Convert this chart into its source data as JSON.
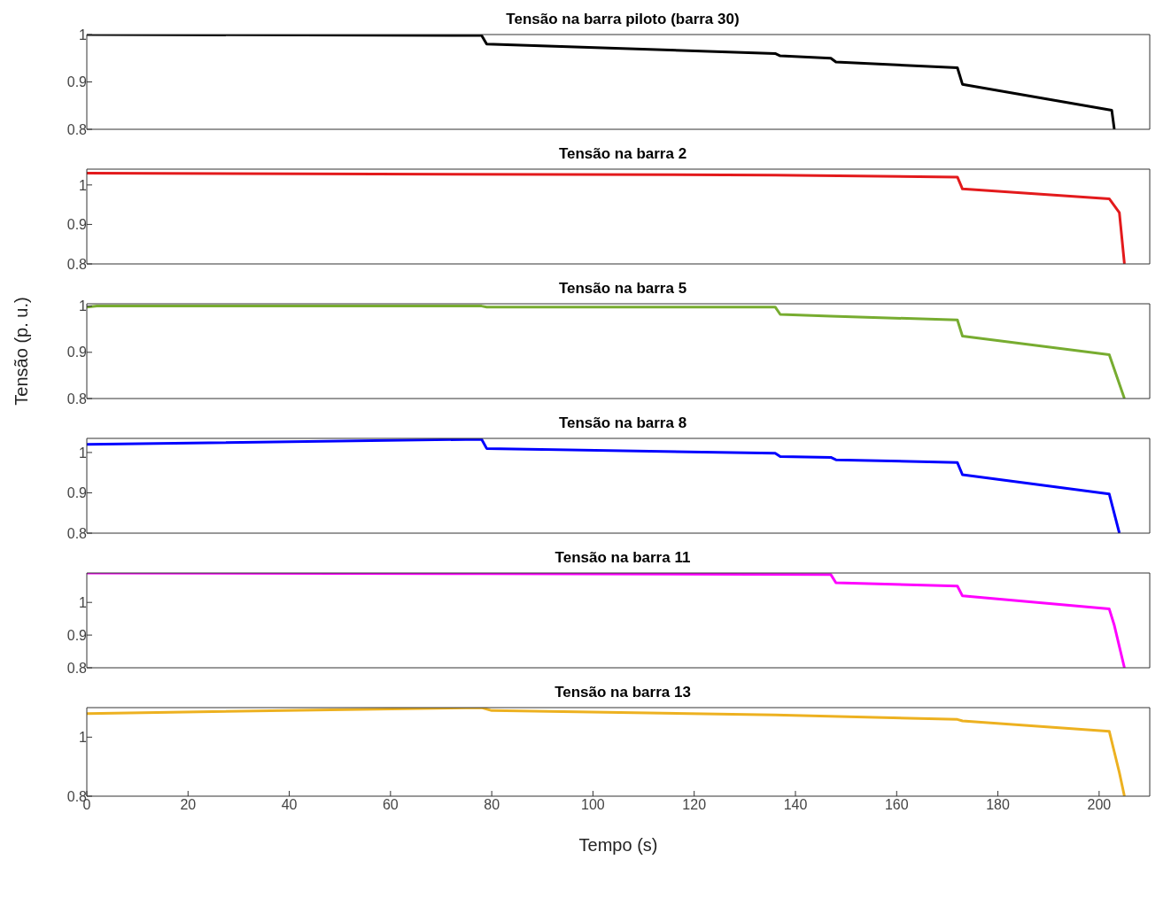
{
  "chart_data": [
    {
      "type": "line",
      "title": "Tensão na barra piloto (barra 30)",
      "xlim": [
        0,
        210
      ],
      "ylim": [
        0.8,
        1
      ],
      "yticks": [
        0.8,
        0.9,
        1
      ],
      "tick_labels": "y",
      "marker": "none",
      "line_style": "solid",
      "series": [
        {
          "color": "#000000",
          "x": [
            0,
            78,
            79,
            136,
            137,
            147,
            148,
            172,
            173,
            202.5,
            203
          ],
          "values": [
            1.0,
            0.998,
            0.98,
            0.96,
            0.955,
            0.95,
            0.942,
            0.93,
            0.895,
            0.84,
            0.8
          ]
        }
      ]
    },
    {
      "type": "line",
      "title": "Tensão na barra 2",
      "xlim": [
        0,
        210
      ],
      "ylim": [
        0.8,
        1.04
      ],
      "yticks": [
        0.8,
        0.9,
        1
      ],
      "tick_labels": "y",
      "marker": "none",
      "line_style": "solid",
      "series": [
        {
          "color": "#e31a1c",
          "x": [
            0,
            136,
            172,
            173,
            202,
            204,
            205
          ],
          "values": [
            1.03,
            1.025,
            1.02,
            0.99,
            0.965,
            0.93,
            0.8
          ]
        }
      ]
    },
    {
      "type": "line",
      "title": "Tensão na barra 5",
      "ylabel": "Tensão (p. u.)",
      "xlim": [
        0,
        210
      ],
      "ylim": [
        0.8,
        1.005
      ],
      "yticks": [
        0.8,
        0.9,
        1
      ],
      "tick_labels": "y",
      "marker": "none",
      "line_style": "solid",
      "series": [
        {
          "color": "#77ac30",
          "x": [
            0,
            2,
            78,
            79,
            136,
            137,
            147,
            172,
            173,
            202,
            205
          ],
          "values": [
            0.998,
            1.0,
            1.0,
            0.998,
            0.998,
            0.982,
            0.978,
            0.97,
            0.935,
            0.895,
            0.8
          ]
        }
      ]
    },
    {
      "type": "line",
      "title": "Tensão na barra 8",
      "xlim": [
        0,
        210
      ],
      "ylim": [
        0.8,
        1.035
      ],
      "yticks": [
        0.8,
        0.9,
        1
      ],
      "tick_labels": "y",
      "marker": "none",
      "line_style": "solid",
      "series": [
        {
          "color": "#0000ff",
          "x": [
            0,
            78,
            79,
            136,
            137,
            147,
            148,
            172,
            173,
            202,
            204
          ],
          "values": [
            1.02,
            1.033,
            1.01,
            0.998,
            0.99,
            0.988,
            0.982,
            0.975,
            0.945,
            0.897,
            0.8
          ]
        }
      ]
    },
    {
      "type": "line",
      "title": "Tensão na barra 11",
      "xlim": [
        0,
        210
      ],
      "ylim": [
        0.8,
        1.09
      ],
      "yticks": [
        0.8,
        0.9,
        1
      ],
      "tick_labels": "y",
      "marker": "none",
      "line_style": "solid",
      "series": [
        {
          "color": "#ff00ff",
          "x": [
            0,
            78,
            147,
            148,
            172,
            173,
            202,
            203,
            205
          ],
          "values": [
            1.09,
            1.088,
            1.085,
            1.06,
            1.05,
            1.02,
            0.98,
            0.93,
            0.8
          ]
        }
      ]
    },
    {
      "type": "line",
      "title": "Tensão na barra 13",
      "xlabel": "Tempo (s)",
      "xlim": [
        0,
        210
      ],
      "ylim": [
        0.8,
        1.1
      ],
      "xticks": [
        0,
        20,
        40,
        60,
        80,
        100,
        120,
        140,
        160,
        180,
        200
      ],
      "yticks": [
        0.8,
        1
      ],
      "marker": "none",
      "line_style": "solid",
      "series": [
        {
          "color": "#edb120",
          "x": [
            0,
            78,
            80,
            136,
            172,
            173,
            202,
            203,
            204,
            205
          ],
          "values": [
            1.08,
            1.1,
            1.09,
            1.075,
            1.06,
            1.055,
            1.02,
            0.95,
            0.88,
            0.8
          ]
        }
      ]
    }
  ]
}
